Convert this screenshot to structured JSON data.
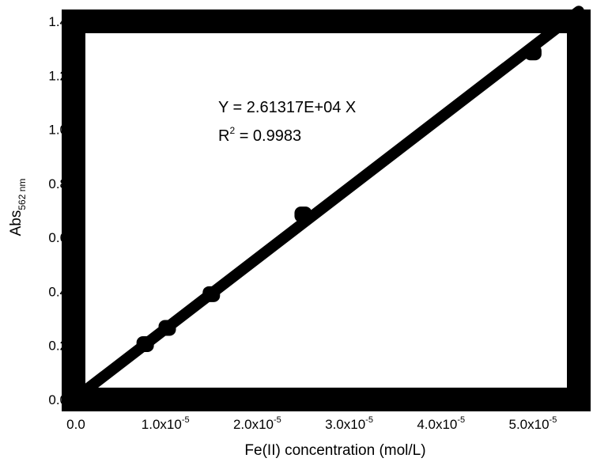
{
  "chart_data": {
    "type": "scatter",
    "xlabel": "Fe(II) concentration (mol/L)",
    "ylabel_main": "Abs",
    "ylabel_sub": "562 nm",
    "xlim": [
      0,
      5.5e-05
    ],
    "ylim": [
      0,
      1.4
    ],
    "x_ticks": [
      {
        "value": 0,
        "mantissa": "0.0",
        "exp": ""
      },
      {
        "value": 1e-05,
        "mantissa": "1.0x10",
        "exp": "-5"
      },
      {
        "value": 2e-05,
        "mantissa": "2.0x10",
        "exp": "-5"
      },
      {
        "value": 3e-05,
        "mantissa": "3.0x10",
        "exp": "-5"
      },
      {
        "value": 4e-05,
        "mantissa": "4.0x10",
        "exp": "-5"
      },
      {
        "value": 5e-05,
        "mantissa": "5.0x10",
        "exp": "-5"
      }
    ],
    "y_ticks": [
      {
        "value": 0.0,
        "label": "0.0"
      },
      {
        "value": 0.2,
        "label": "0.2"
      },
      {
        "value": 0.4,
        "label": "0.4"
      },
      {
        "value": 0.6,
        "label": "0.6"
      },
      {
        "value": 0.8,
        "label": "0.8"
      },
      {
        "value": 1.0,
        "label": "1.0"
      },
      {
        "value": 1.2,
        "label": "1.2"
      },
      {
        "value": 1.4,
        "label": "1.4"
      }
    ],
    "points": [
      {
        "x": 7.8e-06,
        "y": 0.205
      },
      {
        "x": 1.02e-05,
        "y": 0.265
      },
      {
        "x": 1.5e-05,
        "y": 0.39
      },
      {
        "x": 2.5e-05,
        "y": 0.685
      },
      {
        "x": 5e-05,
        "y": 1.285
      }
    ],
    "fit": {
      "slope": 26131.7,
      "intercept": 0
    },
    "fit_line": {
      "x_start": 0,
      "x_end": 5.5e-05
    },
    "annotation": {
      "equation": "Y = 2.61317E+04 X",
      "r2_prefix": "R",
      "r2_exp": "2",
      "r2_value": " = 0.9983"
    },
    "grid": false,
    "legend": "none",
    "color": "#000000"
  }
}
